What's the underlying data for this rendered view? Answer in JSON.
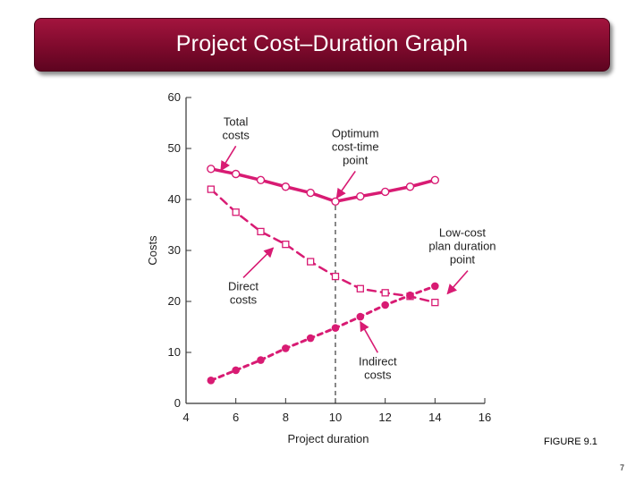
{
  "slide": {
    "title": "Project Cost–Duration Graph",
    "figure_caption": "FIGURE 9.1",
    "page_number": "7"
  },
  "colors": {
    "accent": "#d81b73",
    "title_bar": "#7e0a2c",
    "axis": "#333333",
    "text": "#222222"
  },
  "chart_data": {
    "type": "line",
    "xlabel": "Project duration",
    "ylabel": "Costs",
    "xlim": [
      4,
      16
    ],
    "ylim": [
      0,
      60
    ],
    "x_ticks": [
      4,
      6,
      8,
      10,
      12,
      14,
      16
    ],
    "y_ticks": [
      0,
      10,
      20,
      30,
      40,
      50,
      60
    ],
    "grid": false,
    "series": [
      {
        "name": "Total costs",
        "style": "solid",
        "marker": "open-circle",
        "x": [
          5,
          6,
          7,
          8,
          9,
          10,
          11,
          12,
          13,
          14
        ],
        "y": [
          46,
          45,
          43.8,
          42.5,
          41.3,
          39.6,
          40.6,
          41.5,
          42.5,
          43.8
        ]
      },
      {
        "name": "Direct costs",
        "style": "dashed",
        "marker": "open-square",
        "x": [
          5,
          6,
          7,
          8,
          9,
          10,
          11,
          12,
          13,
          14
        ],
        "y": [
          42,
          37.5,
          33.7,
          31.2,
          27.8,
          24.9,
          22.5,
          21.7,
          21,
          19.8
        ]
      },
      {
        "name": "Indirect costs",
        "style": "dotted",
        "marker": "filled-circle",
        "x": [
          5,
          6,
          7,
          8,
          9,
          10,
          11,
          12,
          13,
          14
        ],
        "y": [
          4.5,
          6.5,
          8.5,
          10.8,
          12.8,
          14.8,
          17,
          19.3,
          21.2,
          23
        ]
      }
    ],
    "reference_line": {
      "x": 10,
      "style": "dashed"
    },
    "annotations": [
      {
        "id": "total",
        "lines": [
          "Total",
          "costs"
        ],
        "x": 6.0,
        "y": 54.5,
        "arrow_to": [
          5.4,
          45.7
        ]
      },
      {
        "id": "optimum",
        "lines": [
          "Optimum",
          "cost-time",
          "point"
        ],
        "x": 10.8,
        "y": 52.2,
        "arrow_to": [
          10.05,
          40.3
        ]
      },
      {
        "id": "direct",
        "lines": [
          "Direct",
          "costs"
        ],
        "x": 6.3,
        "y": 22.2,
        "arrow_to": [
          7.5,
          30.5
        ]
      },
      {
        "id": "lowcost",
        "lines": [
          "Low-cost",
          "plan duration",
          "point"
        ],
        "x": 15.1,
        "y": 32.7,
        "arrow_to": [
          14.5,
          21.5
        ]
      },
      {
        "id": "indirect",
        "lines": [
          "Indirect",
          "costs"
        ],
        "x": 11.7,
        "y": 7.5,
        "arrow_to": [
          11.0,
          16.0
        ]
      }
    ]
  }
}
